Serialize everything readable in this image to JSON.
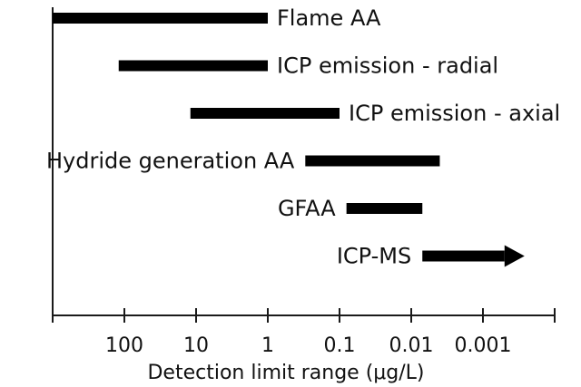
{
  "chart_data": {
    "type": "range-bar",
    "xlabel": "Detection limit range (μg/L)",
    "x_scale": "log",
    "x_direction": "decreasing",
    "xlim": [
      2000,
      0.0001
    ],
    "ticks": [
      {
        "value": 1000,
        "label": ""
      },
      {
        "value": 100,
        "label": "100"
      },
      {
        "value": 10,
        "label": "10"
      },
      {
        "value": 1,
        "label": "1"
      },
      {
        "value": 0.1,
        "label": "0.1"
      },
      {
        "value": 0.01,
        "label": "0.01"
      },
      {
        "value": 0.001,
        "label": "0.001"
      },
      {
        "value": 0.0001,
        "label": ""
      }
    ],
    "series": [
      {
        "name": "Flame AA",
        "high": 1000,
        "low": 1,
        "label_side": "right",
        "arrow": false
      },
      {
        "name": "ICP emission - radial",
        "high": 120,
        "low": 1,
        "label_side": "right",
        "arrow": false
      },
      {
        "name": "ICP emission - axial",
        "high": 12,
        "low": 0.1,
        "label_side": "right",
        "arrow": false
      },
      {
        "name": "Hydride generation AA",
        "high": 0.3,
        "low": 0.004,
        "label_side": "left",
        "arrow": false
      },
      {
        "name": "GFAA",
        "high": 0.08,
        "low": 0.007,
        "label_side": "left",
        "arrow": false
      },
      {
        "name": "ICP-MS",
        "high": 0.007,
        "low": 0.0005,
        "label_side": "left",
        "arrow": true
      }
    ],
    "colors": {
      "bar": "#000000",
      "axis": "#1a1a1a",
      "text": "#111111"
    }
  }
}
